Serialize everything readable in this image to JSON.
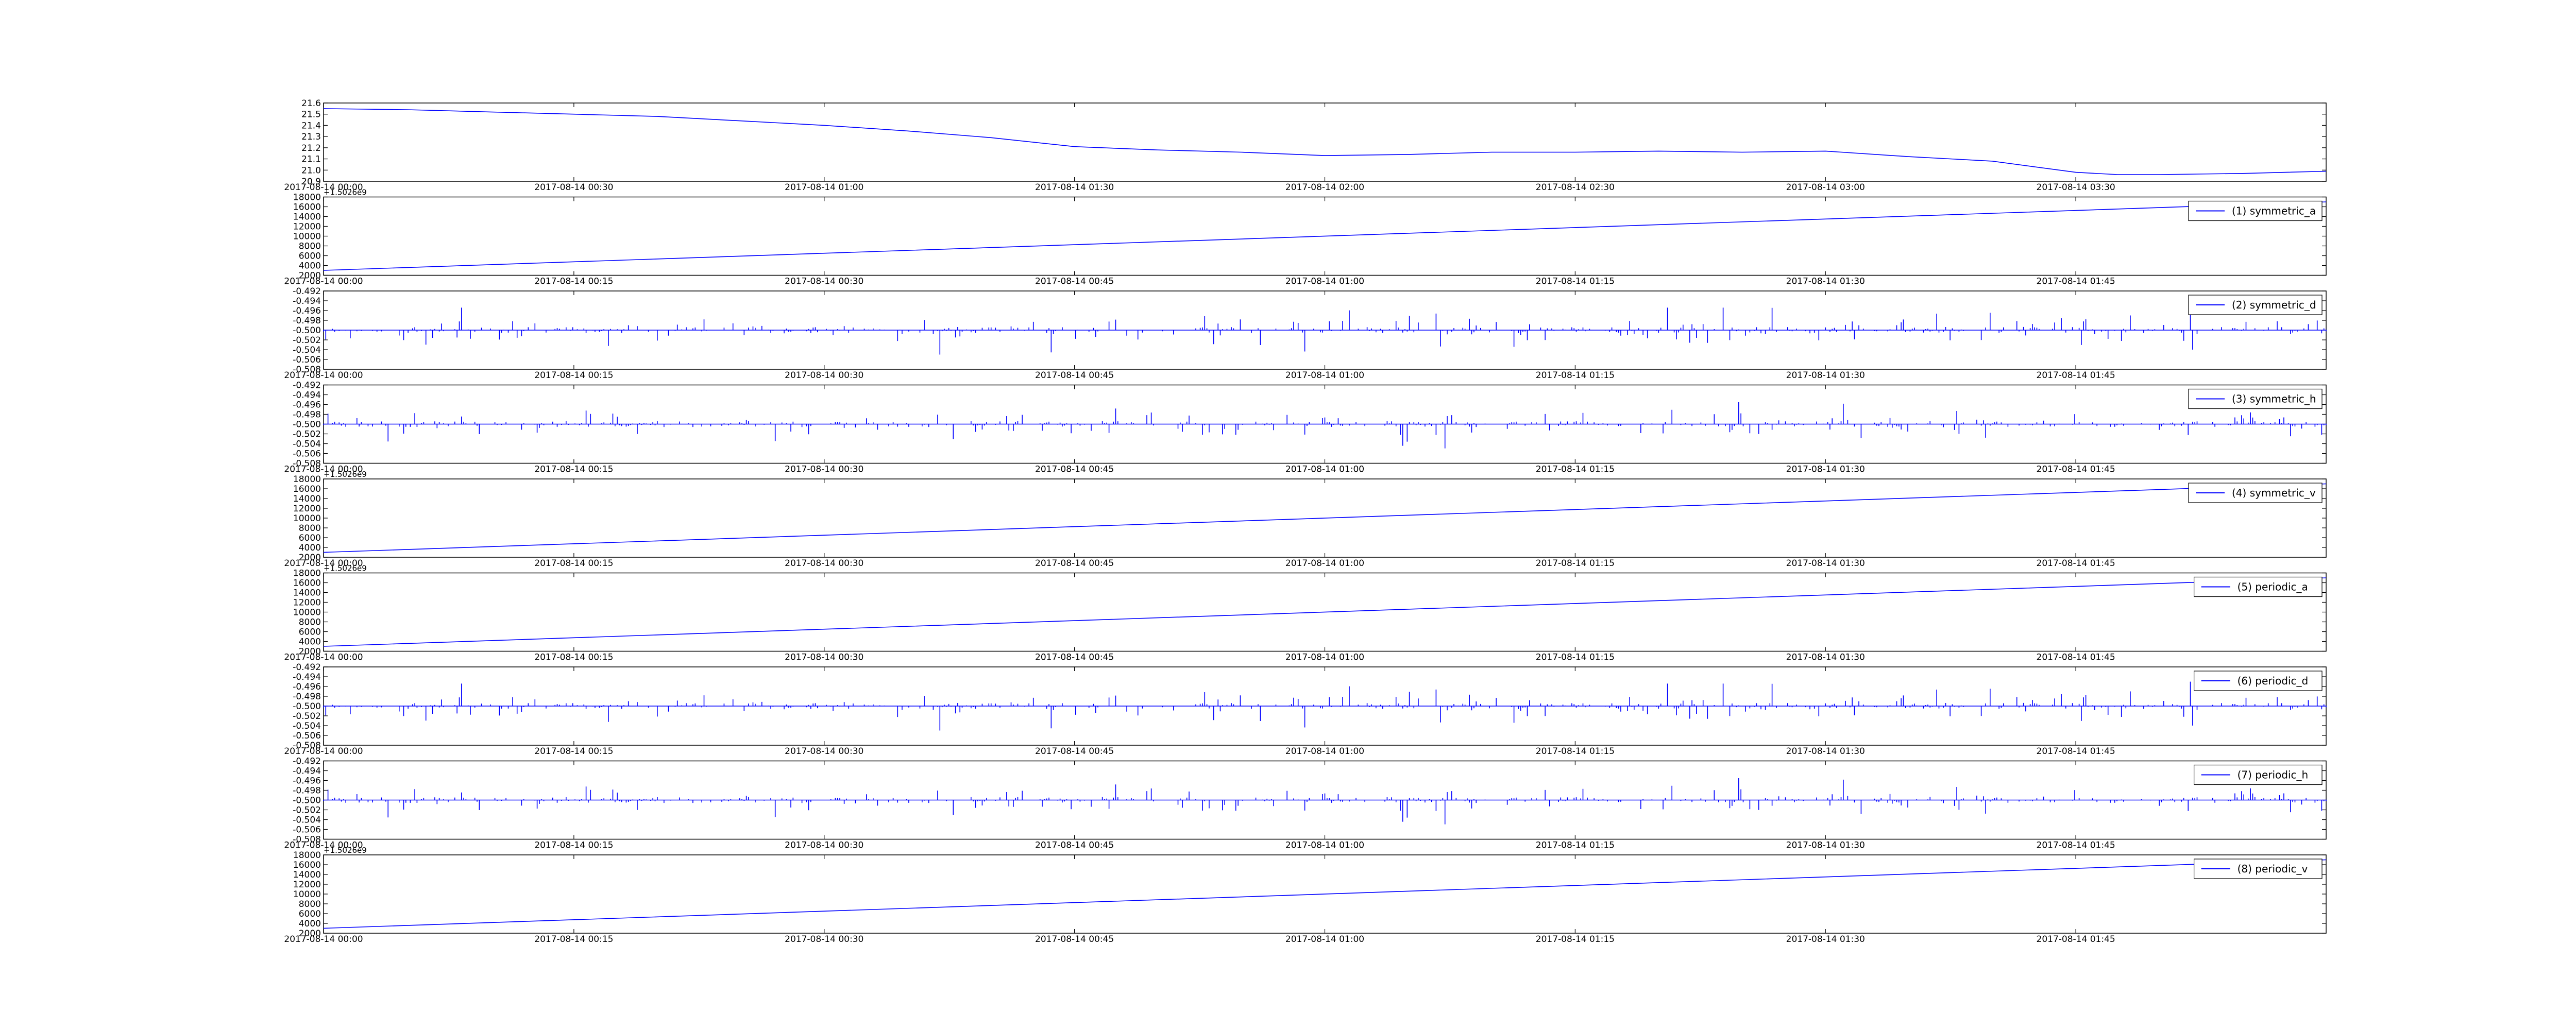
{
  "colors": {
    "line": "#0000ff",
    "axes": "#000000",
    "background": "#ffffff"
  },
  "chart_data": [
    {
      "type": "line",
      "title": "",
      "xlabel": "",
      "ylabel": "",
      "x_tick_labels": [
        "2017-08-14 00:00",
        "2017-08-14 00:30",
        "2017-08-14 01:00",
        "2017-08-14 01:30",
        "2017-08-14 02:00",
        "2017-08-14 02:30",
        "2017-08-14 03:00",
        "2017-08-14 03:30"
      ],
      "x_range_minutes": [
        0,
        240
      ],
      "ylim": [
        20.9,
        21.6
      ],
      "y_tick_labels": [
        "20.9",
        "21.0",
        "21.1",
        "21.2",
        "21.3",
        "21.4",
        "21.5",
        "21.6"
      ],
      "y_offset_text": "",
      "series": [
        {
          "name": "",
          "x": [
            0,
            10,
            20,
            30,
            40,
            50,
            60,
            70,
            80,
            90,
            100,
            110,
            120,
            130,
            140,
            150,
            160,
            170,
            180,
            190,
            200,
            205,
            210,
            215,
            220,
            230,
            240
          ],
          "y": [
            21.55,
            21.54,
            21.52,
            21.5,
            21.48,
            21.44,
            21.4,
            21.35,
            21.29,
            21.21,
            21.18,
            21.16,
            21.13,
            21.14,
            21.16,
            21.16,
            21.17,
            21.16,
            21.17,
            21.12,
            21.08,
            21.03,
            20.98,
            20.96,
            20.96,
            20.97,
            20.99
          ]
        }
      ],
      "legend": null
    },
    {
      "type": "line",
      "title": "",
      "xlabel": "",
      "ylabel": "",
      "x_tick_labels": [
        "2017-08-14 00:00",
        "2017-08-14 00:15",
        "2017-08-14 00:30",
        "2017-08-14 00:45",
        "2017-08-14 01:00",
        "2017-08-14 01:15",
        "2017-08-14 01:30",
        "2017-08-14 01:45"
      ],
      "x_range_minutes": [
        0,
        120
      ],
      "ylim": [
        2000,
        18000
      ],
      "y_tick_labels": [
        "2000",
        "4000",
        "6000",
        "8000",
        "10000",
        "12000",
        "14000",
        "16000",
        "18000"
      ],
      "y_offset_text": "+1.5026e9",
      "series": [
        {
          "name": "(1) symmetric_a",
          "x": [
            0,
            120
          ],
          "y": [
            3000,
            17000
          ]
        }
      ],
      "legend": "top-right"
    },
    {
      "type": "line",
      "title": "",
      "xlabel": "",
      "ylabel": "",
      "x_tick_labels": [
        "2017-08-14 00:00",
        "2017-08-14 00:15",
        "2017-08-14 00:30",
        "2017-08-14 00:45",
        "2017-08-14 01:00",
        "2017-08-14 01:15",
        "2017-08-14 01:30",
        "2017-08-14 01:45"
      ],
      "x_range_minutes": [
        0,
        120
      ],
      "ylim": [
        -0.508,
        -0.492
      ],
      "y_tick_labels": [
        "-0.508",
        "-0.506",
        "-0.504",
        "-0.502",
        "-0.500",
        "-0.498",
        "-0.496",
        "-0.494",
        "-0.492"
      ],
      "y_offset_text": "",
      "baseline": -0.5,
      "noise_seed": 11,
      "series": [
        {
          "name": "(2) symmetric_d",
          "x": [],
          "y": []
        }
      ],
      "legend": "top-right"
    },
    {
      "type": "line",
      "title": "",
      "xlabel": "",
      "ylabel": "",
      "x_tick_labels": [
        "2017-08-14 00:00",
        "2017-08-14 00:15",
        "2017-08-14 00:30",
        "2017-08-14 00:45",
        "2017-08-14 01:00",
        "2017-08-14 01:15",
        "2017-08-14 01:30",
        "2017-08-14 01:45"
      ],
      "x_range_minutes": [
        0,
        120
      ],
      "ylim": [
        -0.508,
        -0.492
      ],
      "y_tick_labels": [
        "-0.508",
        "-0.506",
        "-0.504",
        "-0.502",
        "-0.500",
        "-0.498",
        "-0.496",
        "-0.494",
        "-0.492"
      ],
      "y_offset_text": "",
      "baseline": -0.5,
      "noise_seed": 23,
      "series": [
        {
          "name": "(3) symmetric_h",
          "x": [],
          "y": []
        }
      ],
      "legend": "top-right"
    },
    {
      "type": "line",
      "title": "",
      "xlabel": "",
      "ylabel": "",
      "x_tick_labels": [
        "2017-08-14 00:00",
        "2017-08-14 00:15",
        "2017-08-14 00:30",
        "2017-08-14 00:45",
        "2017-08-14 01:00",
        "2017-08-14 01:15",
        "2017-08-14 01:30",
        "2017-08-14 01:45"
      ],
      "x_range_minutes": [
        0,
        120
      ],
      "ylim": [
        2000,
        18000
      ],
      "y_tick_labels": [
        "2000",
        "4000",
        "6000",
        "8000",
        "10000",
        "12000",
        "14000",
        "16000",
        "18000"
      ],
      "y_offset_text": "+1.5026e9",
      "series": [
        {
          "name": "(4) symmetric_v",
          "x": [
            0,
            120
          ],
          "y": [
            3000,
            17000
          ]
        }
      ],
      "legend": "top-right"
    },
    {
      "type": "line",
      "title": "",
      "xlabel": "",
      "ylabel": "",
      "x_tick_labels": [
        "2017-08-14 00:00",
        "2017-08-14 00:15",
        "2017-08-14 00:30",
        "2017-08-14 00:45",
        "2017-08-14 01:00",
        "2017-08-14 01:15",
        "2017-08-14 01:30",
        "2017-08-14 01:45"
      ],
      "x_range_minutes": [
        0,
        120
      ],
      "ylim": [
        2000,
        18000
      ],
      "y_tick_labels": [
        "2000",
        "4000",
        "6000",
        "8000",
        "10000",
        "12000",
        "14000",
        "16000",
        "18000"
      ],
      "y_offset_text": "+1.5026e9",
      "series": [
        {
          "name": "(5) periodic_a",
          "x": [
            0,
            120
          ],
          "y": [
            3000,
            17000
          ]
        }
      ],
      "legend": "top-right"
    },
    {
      "type": "line",
      "title": "",
      "xlabel": "",
      "ylabel": "",
      "x_tick_labels": [
        "2017-08-14 00:00",
        "2017-08-14 00:15",
        "2017-08-14 00:30",
        "2017-08-14 00:45",
        "2017-08-14 01:00",
        "2017-08-14 01:15",
        "2017-08-14 01:30",
        "2017-08-14 01:45"
      ],
      "x_range_minutes": [
        0,
        120
      ],
      "ylim": [
        -0.508,
        -0.492
      ],
      "y_tick_labels": [
        "-0.508",
        "-0.506",
        "-0.504",
        "-0.502",
        "-0.500",
        "-0.498",
        "-0.496",
        "-0.494",
        "-0.492"
      ],
      "y_offset_text": "",
      "baseline": -0.5,
      "noise_seed": 11,
      "series": [
        {
          "name": "(6) periodic_d",
          "x": [],
          "y": []
        }
      ],
      "legend": "top-right"
    },
    {
      "type": "line",
      "title": "",
      "xlabel": "",
      "ylabel": "",
      "x_tick_labels": [
        "2017-08-14 00:00",
        "2017-08-14 00:15",
        "2017-08-14 00:30",
        "2017-08-14 00:45",
        "2017-08-14 01:00",
        "2017-08-14 01:15",
        "2017-08-14 01:30",
        "2017-08-14 01:45"
      ],
      "x_range_minutes": [
        0,
        120
      ],
      "ylim": [
        -0.508,
        -0.492
      ],
      "y_tick_labels": [
        "-0.508",
        "-0.506",
        "-0.504",
        "-0.502",
        "-0.500",
        "-0.498",
        "-0.496",
        "-0.494",
        "-0.492"
      ],
      "y_offset_text": "",
      "baseline": -0.5,
      "noise_seed": 23,
      "series": [
        {
          "name": "(7) periodic_h",
          "x": [],
          "y": []
        }
      ],
      "legend": "top-right"
    },
    {
      "type": "line",
      "title": "",
      "xlabel": "",
      "ylabel": "",
      "x_tick_labels": [
        "2017-08-14 00:00",
        "2017-08-14 00:15",
        "2017-08-14 00:30",
        "2017-08-14 00:45",
        "2017-08-14 01:00",
        "2017-08-14 01:15",
        "2017-08-14 01:30",
        "2017-08-14 01:45"
      ],
      "x_range_minutes": [
        0,
        120
      ],
      "ylim": [
        2000,
        18000
      ],
      "y_tick_labels": [
        "2000",
        "4000",
        "6000",
        "8000",
        "10000",
        "12000",
        "14000",
        "16000",
        "18000"
      ],
      "y_offset_text": "+1.5026e9",
      "series": [
        {
          "name": "(8) periodic_v",
          "x": [
            0,
            120
          ],
          "y": [
            3000,
            17000
          ]
        }
      ],
      "legend": "top-right"
    }
  ]
}
